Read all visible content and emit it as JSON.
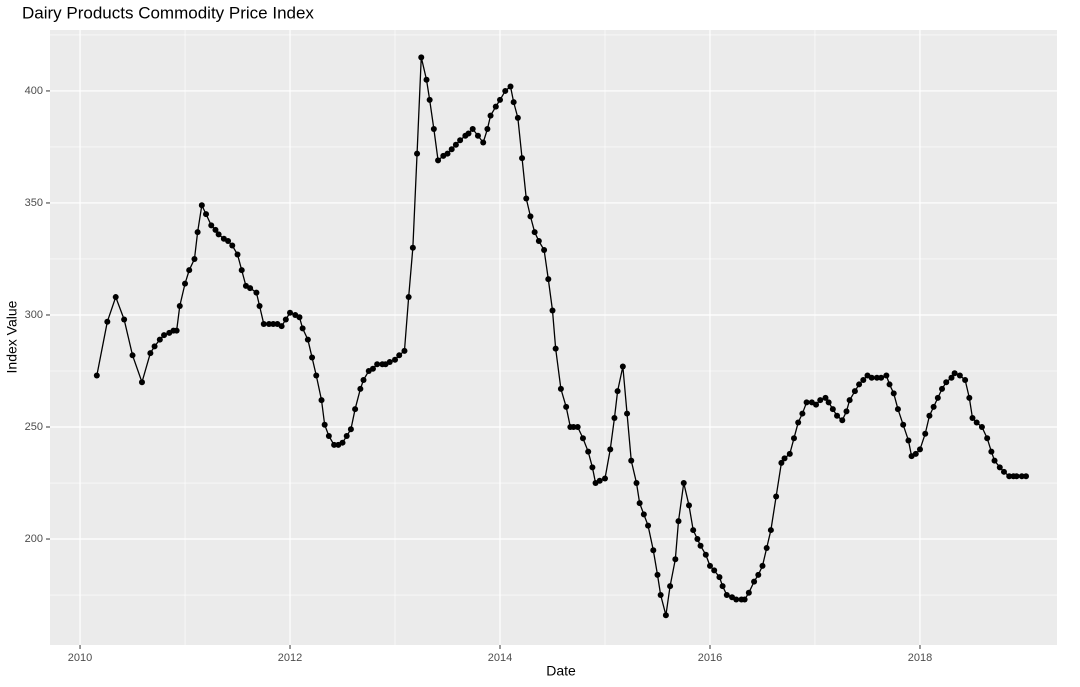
{
  "chart_data": {
    "type": "line",
    "title": "Dairy Products Commodity Price Index",
    "x_label": "Date",
    "y_label": "Index Value",
    "xlim": [
      2009.714,
      2019.305
    ],
    "ylim": [
      152.7,
      427.2
    ],
    "xticks": [
      2010,
      2012,
      2014,
      2016,
      2018
    ],
    "yticks": [
      200,
      250,
      300,
      350,
      400
    ],
    "grid": true,
    "minor_grid": true,
    "panel_color": "#ebebeb",
    "markers": true,
    "series": [
      {
        "name": "Index Value",
        "color": "#000000",
        "x": [
          2010.16,
          2010.26,
          2010.34,
          2010.42,
          2010.5,
          2010.59,
          2010.67,
          2010.71,
          2010.76,
          2010.8,
          2010.85,
          2010.89,
          2010.92,
          2010.95,
          2011.0,
          2011.04,
          2011.09,
          2011.12,
          2011.16,
          2011.2,
          2011.25,
          2011.29,
          2011.32,
          2011.37,
          2011.41,
          2011.45,
          2011.5,
          2011.54,
          2011.58,
          2011.62,
          2011.68,
          2011.71,
          2011.75,
          2011.8,
          2011.84,
          2011.88,
          2011.92,
          2011.96,
          2012.0,
          2012.05,
          2012.09,
          2012.12,
          2012.17,
          2012.21,
          2012.25,
          2012.3,
          2012.33,
          2012.37,
          2012.42,
          2012.46,
          2012.5,
          2012.54,
          2012.58,
          2012.62,
          2012.67,
          2012.7,
          2012.75,
          2012.79,
          2012.83,
          2012.88,
          2012.91,
          2012.95,
          2013.0,
          2013.04,
          2013.09,
          2013.13,
          2013.17,
          2013.21,
          2013.25,
          2013.3,
          2013.33,
          2013.37,
          2013.41,
          2013.46,
          2013.5,
          2013.54,
          2013.58,
          2013.62,
          2013.67,
          2013.7,
          2013.74,
          2013.79,
          2013.84,
          2013.88,
          2013.91,
          2013.96,
          2014.0,
          2014.05,
          2014.1,
          2014.13,
          2014.17,
          2014.21,
          2014.25,
          2014.29,
          2014.33,
          2014.37,
          2014.42,
          2014.46,
          2014.5,
          2014.53,
          2014.58,
          2014.63,
          2014.67,
          2014.7,
          2014.74,
          2014.79,
          2014.84,
          2014.88,
          2014.91,
          2014.95,
          2015.0,
          2015.05,
          2015.09,
          2015.12,
          2015.17,
          2015.21,
          2015.25,
          2015.3,
          2015.33,
          2015.37,
          2015.41,
          2015.46,
          2015.5,
          2015.53,
          2015.58,
          2015.62,
          2015.67,
          2015.7,
          2015.75,
          2015.8,
          2015.84,
          2015.88,
          2015.91,
          2015.96,
          2016.0,
          2016.04,
          2016.09,
          2016.12,
          2016.16,
          2016.21,
          2016.25,
          2016.3,
          2016.33,
          2016.37,
          2016.42,
          2016.46,
          2016.5,
          2016.54,
          2016.58,
          2016.63,
          2016.68,
          2016.71,
          2016.76,
          2016.8,
          2016.84,
          2016.88,
          2016.92,
          2016.97,
          2017.01,
          2017.05,
          2017.1,
          2017.13,
          2017.17,
          2017.21,
          2017.26,
          2017.3,
          2017.33,
          2017.38,
          2017.42,
          2017.46,
          2017.5,
          2017.54,
          2017.59,
          2017.63,
          2017.68,
          2017.71,
          2017.75,
          2017.79,
          2017.84,
          2017.89,
          2017.92,
          2017.96,
          2018.0,
          2018.05,
          2018.09,
          2018.13,
          2018.17,
          2018.21,
          2018.25,
          2018.3,
          2018.33,
          2018.38,
          2018.43,
          2018.47,
          2018.5,
          2018.54,
          2018.59,
          2018.64,
          2018.68,
          2018.71,
          2018.76,
          2018.8,
          2018.85,
          2018.89,
          2018.92,
          2018.97,
          2019.01
        ],
        "values": [
          273,
          297,
          308,
          298,
          282,
          270,
          283,
          286,
          289,
          291,
          292,
          293,
          293,
          304,
          314,
          320,
          325,
          337,
          349,
          345,
          340,
          338,
          336,
          334,
          333,
          331,
          327,
          320,
          313,
          312,
          310,
          304,
          296,
          296,
          296,
          296,
          295,
          298,
          301,
          300,
          299,
          294,
          289,
          281,
          273,
          262,
          251,
          246,
          242,
          242,
          243,
          246,
          249,
          258,
          267,
          271,
          275,
          276,
          278,
          278,
          278,
          279,
          280,
          282,
          284,
          308,
          330,
          372,
          415,
          405,
          396,
          383,
          369,
          371,
          372,
          374,
          376,
          378,
          380,
          381,
          383,
          380,
          377,
          383,
          389,
          393,
          396,
          400,
          402,
          395,
          388,
          370,
          352,
          344,
          337,
          333,
          329,
          316,
          302,
          285,
          267,
          259,
          250,
          250,
          250,
          245,
          239,
          232,
          225,
          226,
          227,
          240,
          254,
          266,
          277,
          256,
          235,
          225,
          216,
          211,
          206,
          195,
          184,
          175,
          166,
          179,
          191,
          208,
          225,
          215,
          204,
          200,
          197,
          193,
          188,
          186,
          183,
          179,
          175,
          174,
          173,
          173,
          173,
          176,
          181,
          184,
          188,
          196,
          204,
          219,
          234,
          236,
          238,
          245,
          252,
          256,
          261,
          261,
          260,
          262,
          263,
          261,
          258,
          255,
          253,
          257,
          262,
          266,
          269,
          271,
          273,
          272,
          272,
          272,
          273,
          269,
          265,
          258,
          251,
          244,
          237,
          238,
          240,
          247,
          255,
          259,
          263,
          267,
          270,
          272,
          274,
          273,
          271,
          263,
          254,
          252,
          250,
          245,
          239,
          235,
          232,
          230,
          228,
          228,
          228,
          228,
          228
        ]
      }
    ]
  }
}
